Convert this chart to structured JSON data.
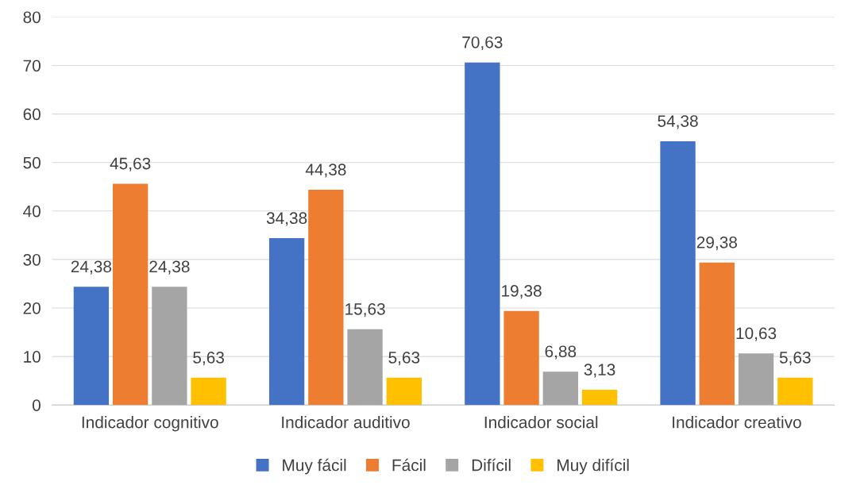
{
  "chart_data": {
    "type": "bar",
    "categories": [
      "Indicador cognitivo",
      "Indicador auditivo",
      "Indicador social",
      "Indicador creativo"
    ],
    "series": [
      {
        "name": "Muy fácil",
        "color": "#4472c4",
        "values": [
          24.38,
          34.38,
          70.63,
          54.38
        ],
        "value_labels": [
          "24,38",
          "34,38",
          "70,63",
          "54,38"
        ]
      },
      {
        "name": "Fácil",
        "color": "#ed7d31",
        "values": [
          45.63,
          44.38,
          19.38,
          29.38
        ],
        "value_labels": [
          "45,63",
          "44,38",
          "19,38",
          "29,38"
        ]
      },
      {
        "name": "Difícil",
        "color": "#a5a5a5",
        "values": [
          24.38,
          15.63,
          6.88,
          10.63
        ],
        "value_labels": [
          "24,38",
          "15,63",
          "6,88",
          "10,63"
        ]
      },
      {
        "name": "Muy difícil",
        "color": "#ffc000",
        "values": [
          5.63,
          5.63,
          3.13,
          5.63
        ],
        "value_labels": [
          "5,63",
          "5,63",
          "3,13",
          "5,63"
        ]
      }
    ],
    "ylim": [
      0,
      80
    ],
    "yticks": [
      0,
      10,
      20,
      30,
      40,
      50,
      60,
      70,
      80
    ],
    "grid": "y",
    "legend": "bottom"
  }
}
